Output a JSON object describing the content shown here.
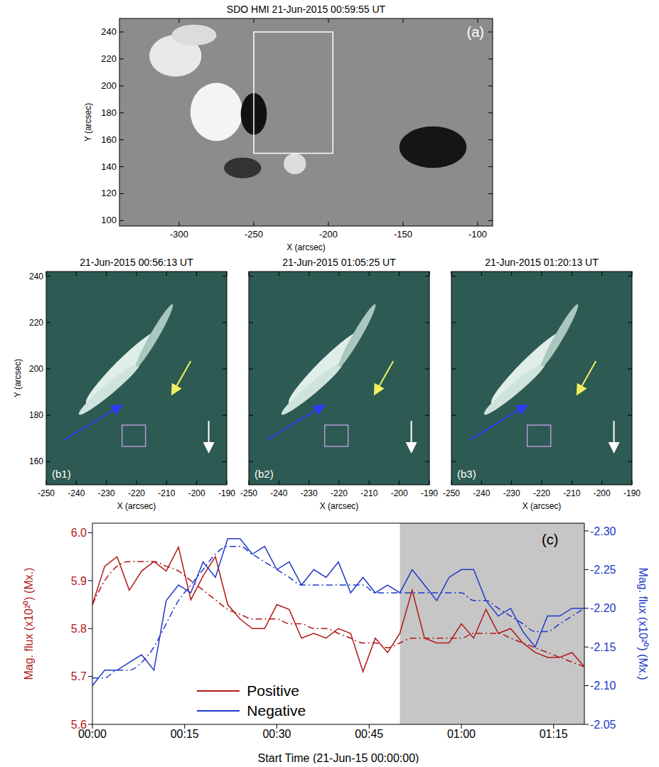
{
  "panels": [
    {
      "title": "SDO HMI 21-Jun-2015 00:59:55 UT",
      "label": "(a)",
      "x_label": "X (arcsec)",
      "y_label": "Y (arcsec)",
      "xlim": [
        -340,
        -90
      ],
      "xticks": [
        -300,
        -250,
        -200,
        -150,
        -100
      ],
      "ylim": [
        96,
        250
      ],
      "yticks": [
        100,
        120,
        140,
        160,
        180,
        200,
        220,
        240
      ],
      "box": {
        "x": [
          -250,
          -197
        ],
        "y": [
          150,
          240
        ]
      }
    },
    {
      "title": "21-Jun-2015 00:56:13 UT",
      "label": "(b1)",
      "x_label": "X (arcsec)",
      "y_label": "Y (arcsec)",
      "xlim": [
        -250,
        -190
      ],
      "xticks": [
        -250,
        -240,
        -230,
        -220,
        -210,
        -200,
        -190
      ],
      "ylim": [
        150,
        242
      ],
      "yticks": [
        160,
        180,
        200,
        220,
        240
      ]
    },
    {
      "title": "21-Jun-2015 01:05:25 UT",
      "label": "(b2)",
      "x_label": "X (arcsec)",
      "xlim": [
        -250,
        -190
      ],
      "xticks": [
        -250,
        -240,
        -230,
        -220,
        -210,
        -200,
        -190
      ],
      "ylim": [
        150,
        242
      ],
      "yticks": [
        160,
        180,
        200,
        220,
        240
      ],
      "tick_labels": "x"
    },
    {
      "title": "21-Jun-2015 01:20:13 UT",
      "label": "(b3)",
      "x_label": "X (arcsec)",
      "xlim": [
        -250,
        -190
      ],
      "xticks": [
        -250,
        -240,
        -230,
        -220,
        -210,
        -200,
        -190
      ],
      "ylim": [
        150,
        242
      ],
      "yticks": [
        160,
        180,
        200,
        220,
        240
      ],
      "tick_labels": "x"
    }
  ],
  "chart_data": {
    "type": "line",
    "label": "(c)",
    "x_label": "Start Time (21-Jun-15 00:00:00)",
    "y_label": "Mag. flux (x10²⁰) (Mx.)",
    "y2_label": "Mag. flux (x10²⁰) (Mx.)",
    "x": [
      0,
      2,
      4,
      6,
      8,
      10,
      12,
      14,
      16,
      18,
      20,
      22,
      24,
      26,
      28,
      30,
      32,
      34,
      36,
      38,
      40,
      42,
      44,
      46,
      48,
      50,
      52,
      54,
      56,
      58,
      60,
      62,
      64,
      66,
      68,
      70,
      72,
      74,
      76,
      78,
      80
    ],
    "xlim": [
      0,
      80
    ],
    "xticks": [
      {
        "value": 0,
        "label": "00:00"
      },
      {
        "value": 15,
        "label": "00:15"
      },
      {
        "value": 30,
        "label": "00:30"
      },
      {
        "value": 45,
        "label": "00:45"
      },
      {
        "value": 60,
        "label": "01:00"
      },
      {
        "value": 75,
        "label": "01:15"
      }
    ],
    "ylim": [
      5.6,
      6.02
    ],
    "yticks": [
      5.6,
      5.7,
      5.8,
      5.9,
      {
        "value": 6,
        "label": "6.0"
      }
    ],
    "y2lim": [
      -2.05,
      -2.31
    ],
    "y2ticks": [
      {
        "value": -2.3,
        "label": "-2.30"
      },
      -2.25,
      {
        "value": -2.2,
        "label": "-2.20"
      },
      -2.15,
      {
        "value": -2.1,
        "label": "-2.10"
      },
      -2.05
    ],
    "shaded_span": [
      50,
      80
    ],
    "legend": "bottom",
    "series": [
      {
        "name": "Positive",
        "color": "#b01818",
        "axis": "y",
        "line_style": "solid",
        "values": [
          5.85,
          5.93,
          5.95,
          5.88,
          5.92,
          5.94,
          5.92,
          5.97,
          5.86,
          5.91,
          5.95,
          5.85,
          5.82,
          5.8,
          5.8,
          5.85,
          5.84,
          5.78,
          5.79,
          5.78,
          5.8,
          5.79,
          5.71,
          5.78,
          5.75,
          5.79,
          5.88,
          5.78,
          5.77,
          5.77,
          5.81,
          5.78,
          5.84,
          5.79,
          5.8,
          5.77,
          5.75,
          5.74,
          5.74,
          5.75,
          5.72
        ],
        "trend": [
          5.85,
          5.9,
          5.93,
          5.94,
          5.94,
          5.94,
          5.93,
          5.92,
          5.9,
          5.88,
          5.86,
          5.84,
          5.83,
          5.82,
          5.82,
          5.82,
          5.81,
          5.81,
          5.8,
          5.8,
          5.79,
          5.78,
          5.77,
          5.77,
          5.76,
          5.77,
          5.78,
          5.78,
          5.78,
          5.78,
          5.78,
          5.79,
          5.79,
          5.79,
          5.78,
          5.77,
          5.76,
          5.75,
          5.74,
          5.73,
          5.72
        ]
      },
      {
        "name": "Negative",
        "color": "#2038c8",
        "axis": "y2",
        "line_style": "solid",
        "values": [
          -2.1,
          -2.12,
          -2.12,
          -2.13,
          -2.14,
          -2.12,
          -2.21,
          -2.23,
          -2.22,
          -2.26,
          -2.24,
          -2.29,
          -2.29,
          -2.27,
          -2.28,
          -2.25,
          -2.26,
          -2.23,
          -2.25,
          -2.24,
          -2.26,
          -2.22,
          -2.24,
          -2.22,
          -2.23,
          -2.22,
          -2.25,
          -2.23,
          -2.21,
          -2.24,
          -2.25,
          -2.25,
          -2.21,
          -2.19,
          -2.2,
          -2.17,
          -2.15,
          -2.19,
          -2.19,
          -2.2,
          -2.2
        ],
        "trend": [
          -2.11,
          -2.11,
          -2.12,
          -2.12,
          -2.13,
          -2.15,
          -2.18,
          -2.21,
          -2.23,
          -2.25,
          -2.27,
          -2.28,
          -2.28,
          -2.27,
          -2.26,
          -2.25,
          -2.24,
          -2.23,
          -2.23,
          -2.23,
          -2.23,
          -2.23,
          -2.23,
          -2.22,
          -2.22,
          -2.22,
          -2.22,
          -2.22,
          -2.22,
          -2.22,
          -2.22,
          -2.21,
          -2.21,
          -2.2,
          -2.19,
          -2.18,
          -2.17,
          -2.17,
          -2.18,
          -2.19,
          -2.2
        ]
      }
    ]
  }
}
